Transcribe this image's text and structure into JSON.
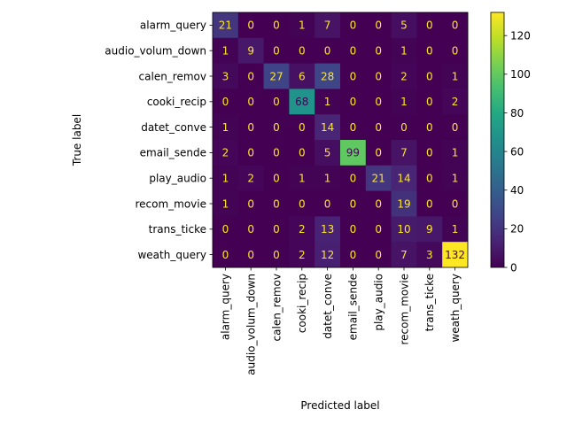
{
  "chart_data": {
    "type": "heatmap",
    "title": "",
    "xlabel": "Predicted label",
    "ylabel": "True label",
    "colormap": "viridis",
    "x_categories": [
      "alarm_query",
      "audio_volum_down",
      "calen_remov",
      "cooki_recip",
      "datet_conve",
      "email_sende",
      "play_audio",
      "recom_movie",
      "trans_ticke",
      "weath_query"
    ],
    "y_categories": [
      "alarm_query",
      "audio_volum_down",
      "calen_remov",
      "cooki_recip",
      "datet_conve",
      "email_sende",
      "play_audio",
      "recom_movie",
      "trans_ticke",
      "weath_query"
    ],
    "values": [
      [
        21,
        0,
        0,
        1,
        7,
        0,
        0,
        5,
        0,
        0
      ],
      [
        1,
        9,
        0,
        0,
        0,
        0,
        0,
        1,
        0,
        0
      ],
      [
        3,
        0,
        27,
        6,
        28,
        0,
        0,
        2,
        0,
        1
      ],
      [
        0,
        0,
        0,
        68,
        1,
        0,
        0,
        1,
        0,
        2
      ],
      [
        1,
        0,
        0,
        0,
        14,
        0,
        0,
        0,
        0,
        0
      ],
      [
        2,
        0,
        0,
        0,
        5,
        99,
        0,
        7,
        0,
        1
      ],
      [
        1,
        2,
        0,
        1,
        1,
        0,
        21,
        14,
        0,
        1
      ],
      [
        1,
        0,
        0,
        0,
        0,
        0,
        0,
        19,
        0,
        0
      ],
      [
        0,
        0,
        0,
        2,
        13,
        0,
        0,
        10,
        9,
        1
      ],
      [
        0,
        0,
        0,
        2,
        12,
        0,
        0,
        7,
        3,
        132
      ]
    ],
    "vmin": 0,
    "vmax": 132,
    "colorbar_ticks": [
      0,
      20,
      40,
      60,
      80,
      100,
      120
    ]
  }
}
